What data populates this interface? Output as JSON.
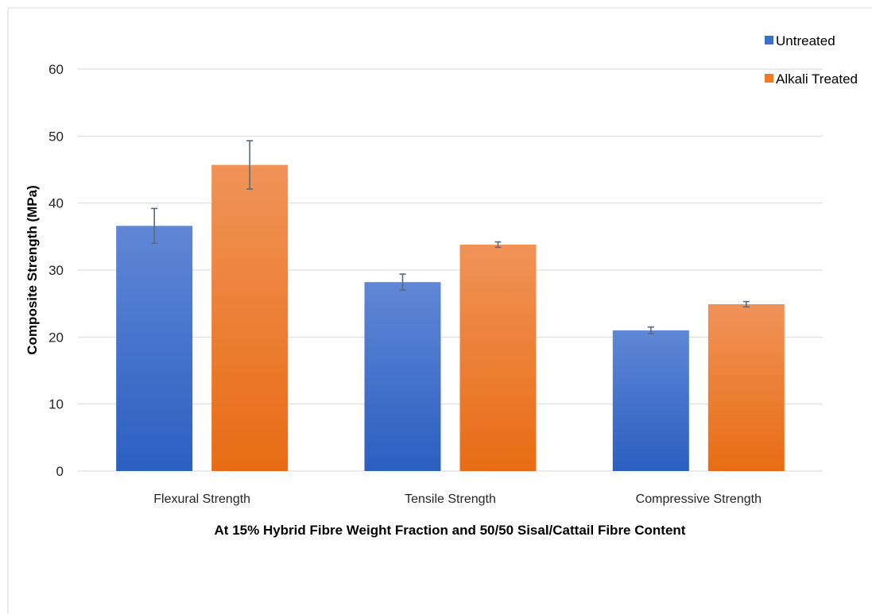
{
  "chart_data": {
    "type": "bar",
    "categories": [
      "Flexural Strength",
      "Tensile Strength",
      "Compressive Strength"
    ],
    "series": [
      {
        "name": "Untreated",
        "color": "#3a6fce",
        "values": [
          36.6,
          28.2,
          21.0
        ],
        "errors": [
          2.6,
          1.2,
          0.5
        ]
      },
      {
        "name": "Alkali Treated",
        "color": "#f07a24",
        "values": [
          45.7,
          33.8,
          24.9
        ],
        "errors": [
          3.6,
          0.4,
          0.4
        ]
      }
    ],
    "title": "",
    "xlabel": "At 15% Hybrid Fibre Weight Fraction and 50/50 Sisal/Cattail Fibre Content",
    "ylabel": "Composite Strength (MPa)",
    "ylim": [
      0,
      60
    ],
    "yticks": [
      0,
      10,
      20,
      30,
      40,
      50,
      60
    ],
    "grid": true,
    "legend": "top-right"
  }
}
